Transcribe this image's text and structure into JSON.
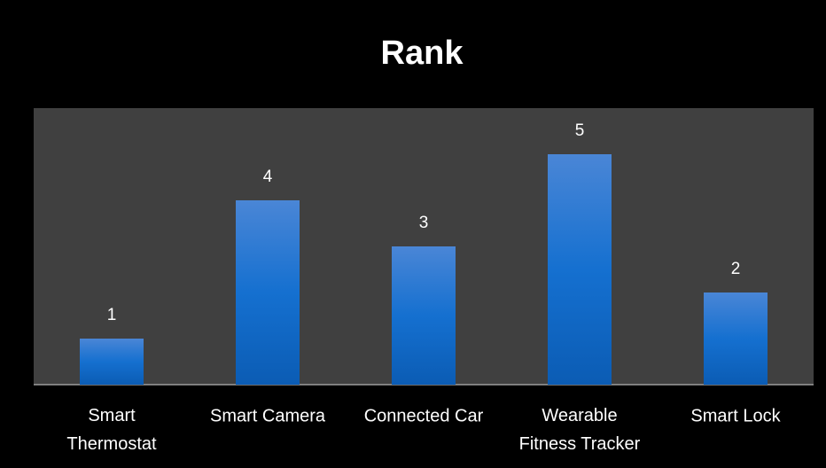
{
  "chart_data": {
    "type": "bar",
    "title": "Rank",
    "categories": [
      "Smart Thermostat",
      "Smart Camera",
      "Connected Car",
      "Wearable Fitness Tracker",
      "Smart Lock"
    ],
    "values": [
      1,
      4,
      3,
      5,
      2
    ],
    "color": "#1a6fcc",
    "ylim": [
      0,
      6
    ],
    "grid": false
  }
}
